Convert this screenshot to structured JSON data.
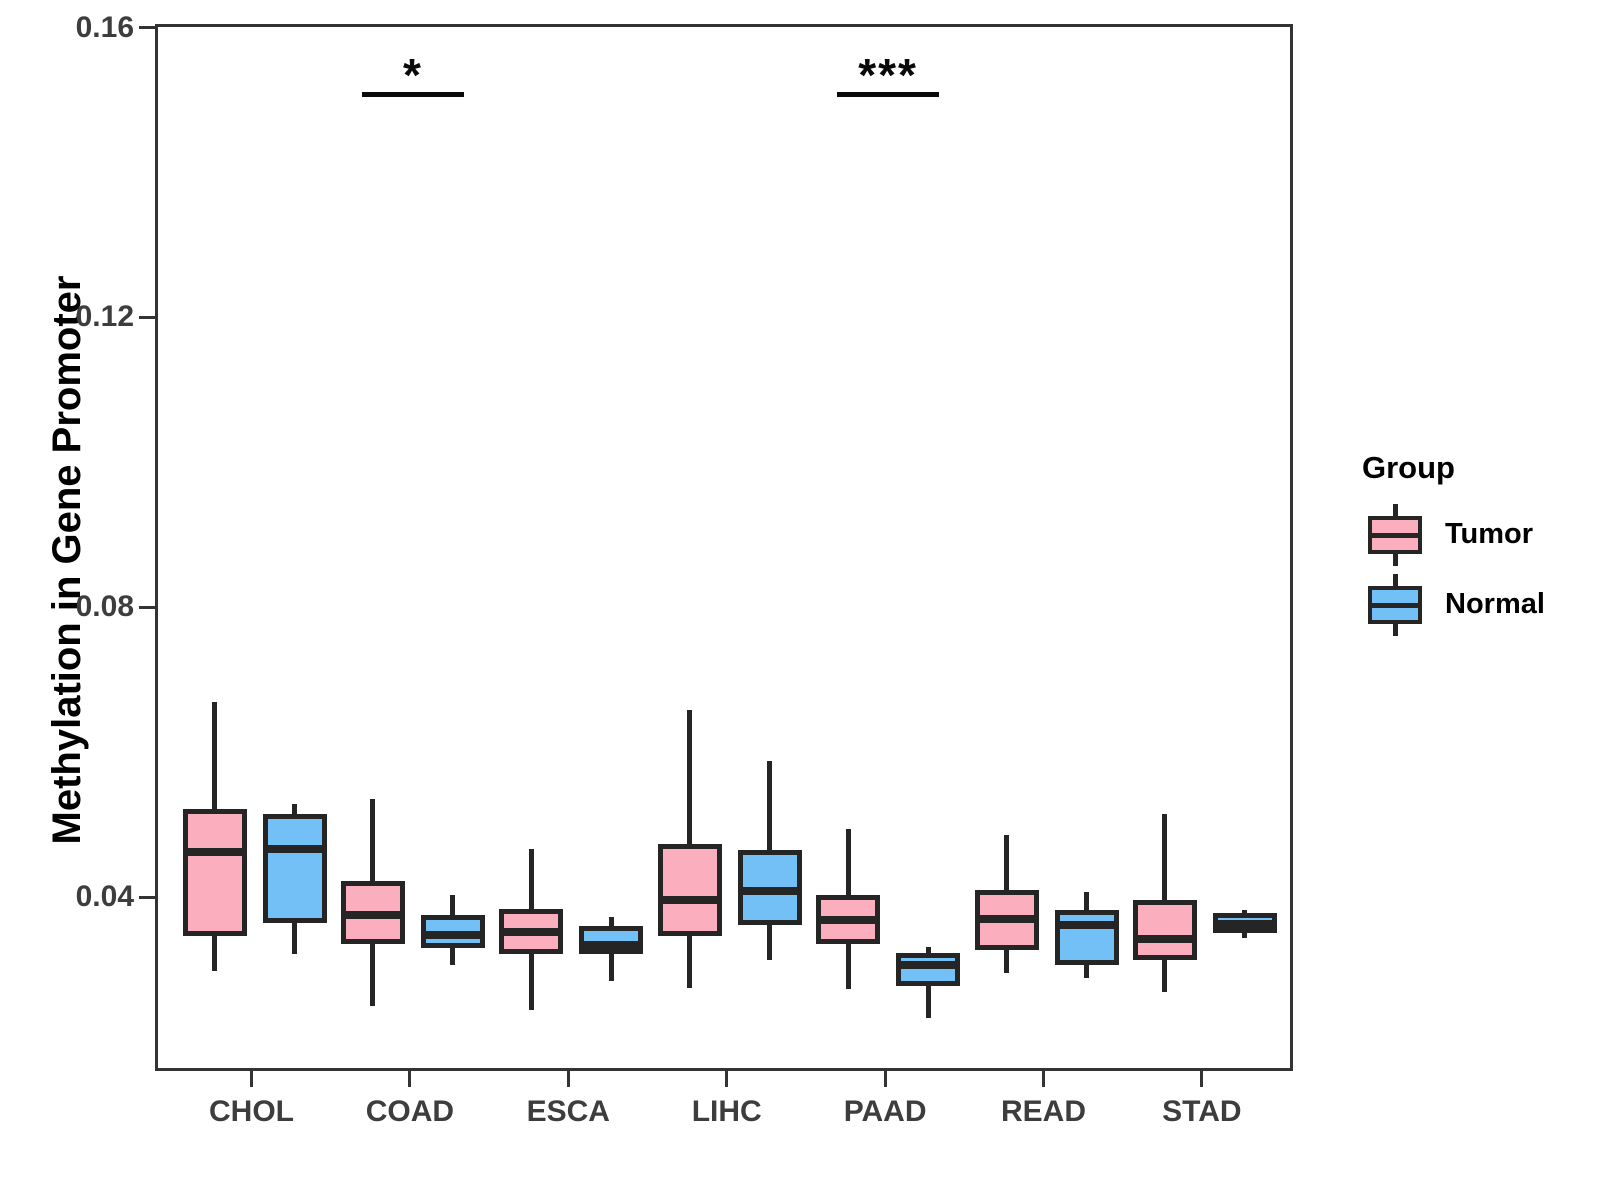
{
  "chart_data": {
    "type": "boxplot",
    "title": "",
    "xlabel": "",
    "ylabel": "Methylation in Gene Promoter",
    "categories": [
      "CHOL",
      "COAD",
      "ESCA",
      "LIHC",
      "PAAD",
      "READ",
      "STAD"
    ],
    "series": [
      {
        "name": "Tumor",
        "color": "#FAAEBE",
        "boxes": [
          {
            "min": 0.0302,
            "q1": 0.035,
            "median": 0.0466,
            "q3": 0.0526,
            "max": 0.0674
          },
          {
            "min": 0.0254,
            "q1": 0.034,
            "median": 0.0379,
            "q3": 0.0426,
            "max": 0.054
          },
          {
            "min": 0.0249,
            "q1": 0.0325,
            "median": 0.0356,
            "q3": 0.0388,
            "max": 0.0471
          },
          {
            "min": 0.0278,
            "q1": 0.035,
            "median": 0.04,
            "q3": 0.0478,
            "max": 0.0662
          },
          {
            "min": 0.0277,
            "q1": 0.034,
            "median": 0.0372,
            "q3": 0.0407,
            "max": 0.0498
          },
          {
            "min": 0.0299,
            "q1": 0.0331,
            "median": 0.0374,
            "q3": 0.0414,
            "max": 0.049
          },
          {
            "min": 0.0273,
            "q1": 0.0318,
            "median": 0.0346,
            "q3": 0.04,
            "max": 0.0519
          }
        ]
      },
      {
        "name": "Normal",
        "color": "#73C0F6",
        "boxes": [
          {
            "min": 0.0325,
            "q1": 0.0368,
            "median": 0.0471,
            "q3": 0.0519,
            "max": 0.0533
          },
          {
            "min": 0.031,
            "q1": 0.0334,
            "median": 0.0352,
            "q3": 0.0379,
            "max": 0.0407
          },
          {
            "min": 0.0289,
            "q1": 0.0325,
            "median": 0.0338,
            "q3": 0.0364,
            "max": 0.0376
          },
          {
            "min": 0.0318,
            "q1": 0.0365,
            "median": 0.0412,
            "q3": 0.0469,
            "max": 0.0592
          },
          {
            "min": 0.0237,
            "q1": 0.0282,
            "median": 0.031,
            "q3": 0.0327,
            "max": 0.0335
          },
          {
            "min": 0.0293,
            "q1": 0.0311,
            "median": 0.0365,
            "q3": 0.0386,
            "max": 0.0411
          },
          {
            "min": 0.0347,
            "q1": 0.0354,
            "median": 0.0367,
            "q3": 0.0382,
            "max": 0.0387
          }
        ]
      }
    ],
    "yticks": [
      0.04,
      0.08,
      0.12,
      0.16
    ],
    "ytick_labels": [
      "0.04",
      "0.08",
      "0.12",
      "0.16"
    ],
    "ylim": [
      0.016,
      0.1605
    ],
    "grid": false,
    "legend_position": "right",
    "annotations": [
      {
        "category": "COAD",
        "label": "*",
        "y": 0.1515
      },
      {
        "category": "PAAD",
        "label": "***",
        "y": 0.1515
      }
    ]
  },
  "legend": {
    "title": "Group"
  },
  "colors": {
    "tumor_fill": "#FAAEBE",
    "normal_fill": "#73C0F6",
    "box_border": "#252525",
    "axis_line": "#333333",
    "tick_text": "#3d3d3d",
    "title_text": "#000000",
    "background": "#ffffff"
  }
}
